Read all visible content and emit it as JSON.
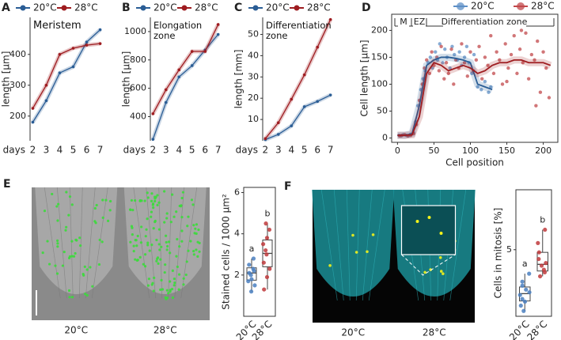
{
  "chart_data": [
    {
      "type": "line",
      "panel": "A",
      "title": "Meristem",
      "x_label": "days",
      "y_label": "length [µm]",
      "x": [
        2,
        3,
        4,
        5,
        6,
        7
      ],
      "xlim": [
        1.8,
        7.2
      ],
      "xticks": [
        2,
        3,
        4,
        5,
        6,
        7
      ],
      "ylim": [
        120,
        520
      ],
      "yticks": [
        200,
        300,
        400
      ],
      "series": [
        {
          "name": "20°C",
          "color": "#2a5d95",
          "values": [
            180,
            250,
            340,
            360,
            440,
            480
          ]
        },
        {
          "name": "28°C",
          "color": "#9e1c20",
          "values": [
            225,
            300,
            400,
            420,
            430,
            435
          ]
        }
      ]
    },
    {
      "type": "line",
      "panel": "B",
      "title": "Elongation zone",
      "x_label": "days",
      "y_label": "length [µm]",
      "x": [
        2,
        3,
        4,
        5,
        6,
        7
      ],
      "xlim": [
        1.8,
        7.2
      ],
      "xticks": [
        2,
        3,
        4,
        5,
        6,
        7
      ],
      "ylim": [
        230,
        1100
      ],
      "yticks": [
        400,
        600,
        800,
        1000
      ],
      "series": [
        {
          "name": "20°C",
          "color": "#2a5d95",
          "values": [
            240,
            500,
            680,
            760,
            870,
            980
          ]
        },
        {
          "name": "28°C",
          "color": "#9e1c20",
          "values": [
            420,
            590,
            730,
            860,
            860,
            1050
          ]
        }
      ]
    },
    {
      "type": "line",
      "panel": "C",
      "title": "Differentiation zone",
      "x_label": "days",
      "y_label": "length [mm]",
      "x": [
        2,
        3,
        4,
        5,
        6,
        7
      ],
      "xlim": [
        1.8,
        7.2
      ],
      "xticks": [
        2,
        3,
        4,
        5,
        6,
        7
      ],
      "ylim": [
        0,
        58
      ],
      "yticks": [
        10,
        20,
        30,
        40,
        50
      ],
      "series": [
        {
          "name": "20°C",
          "color": "#2a5d95",
          "values": [
            0.5,
            3,
            7,
            16,
            18.5,
            21.5
          ]
        },
        {
          "name": "28°C",
          "color": "#9e1c20",
          "values": [
            1,
            8.5,
            19.5,
            31,
            44,
            57
          ]
        }
      ]
    },
    {
      "type": "scatter",
      "panel": "D",
      "x_label": "Cell position",
      "y_label": "Cell length [µm]",
      "zones": [
        "M",
        "EZ",
        "Differentiation zone"
      ],
      "xlim": [
        -8,
        220
      ],
      "xticks": [
        0,
        50,
        100,
        150,
        200
      ],
      "ylim": [
        -8,
        230
      ],
      "yticks": [
        0,
        50,
        100,
        150,
        200
      ],
      "series": [
        {
          "name": "20°C",
          "color": "#5d8fc6",
          "x": [
            2,
            5,
            8,
            12,
            15,
            18,
            22,
            25,
            28,
            32,
            35,
            38,
            42,
            45,
            48,
            52,
            55,
            58,
            62,
            65,
            68,
            72,
            75,
            78,
            82,
            85,
            88,
            92,
            95,
            98,
            102,
            105,
            110,
            115,
            120,
            125,
            128
          ],
          "values": [
            5,
            4,
            6,
            5,
            4,
            7,
            10,
            30,
            60,
            90,
            110,
            125,
            140,
            150,
            130,
            160,
            145,
            175,
            140,
            165,
            150,
            130,
            170,
            155,
            145,
            160,
            135,
            150,
            170,
            140,
            120,
            155,
            95,
            90,
            105,
            85,
            95
          ]
        },
        {
          "name": "28°C",
          "color": "#c2484b",
          "x": [
            3,
            6,
            10,
            14,
            18,
            22,
            26,
            30,
            34,
            37,
            40,
            44,
            47,
            50,
            54,
            57,
            60,
            64,
            67,
            70,
            74,
            77,
            80,
            84,
            88,
            92,
            96,
            100,
            104,
            108,
            112,
            116,
            120,
            124,
            128,
            132,
            136,
            140,
            144,
            148,
            150,
            152,
            156,
            160,
            164,
            168,
            170,
            172,
            176,
            180,
            184,
            188,
            190,
            192,
            196,
            200,
            204,
            208
          ],
          "values": [
            4,
            5,
            6,
            4,
            5,
            8,
            25,
            70,
            100,
            130,
            145,
            120,
            160,
            135,
            150,
            125,
            170,
            110,
            140,
            120,
            165,
            100,
            145,
            130,
            175,
            140,
            115,
            160,
            125,
            145,
            170,
            110,
            150,
            135,
            190,
            120,
            160,
            145,
            100,
            175,
            105,
            130,
            155,
            190,
            120,
            165,
            200,
            140,
            195,
            110,
            155,
            145,
            60,
            180,
            85,
            160,
            130,
            75
          ]
        }
      ],
      "fits": [
        {
          "color": "#2a5d95",
          "x": [
            0,
            10,
            20,
            30,
            40,
            50,
            60,
            70,
            80,
            90,
            100,
            110,
            120,
            130
          ],
          "values": [
            5,
            5,
            8,
            60,
            135,
            145,
            150,
            150,
            148,
            145,
            140,
            100,
            95,
            90
          ]
        },
        {
          "color": "#9e1c20",
          "x": [
            0,
            10,
            20,
            30,
            40,
            50,
            60,
            70,
            80,
            90,
            100,
            110,
            120,
            130,
            140,
            150,
            160,
            170,
            180,
            190,
            200,
            210
          ],
          "values": [
            5,
            5,
            6,
            40,
            120,
            140,
            135,
            125,
            130,
            135,
            130,
            120,
            125,
            135,
            140,
            140,
            145,
            145,
            140,
            140,
            140,
            135
          ]
        }
      ]
    },
    {
      "type": "box",
      "panel": "E",
      "image_labels": [
        "20°C",
        "28°C"
      ],
      "y_label": "Stained cells / 1000 µm²",
      "categories": [
        "20°C",
        "28°C"
      ],
      "group_labels": [
        "a",
        "b"
      ],
      "colors": [
        "#4a7fbf",
        "#c0393c"
      ],
      "ylim": [
        0,
        6.25
      ],
      "yticks": [
        2,
        4,
        6
      ],
      "boxes": [
        {
          "min": 1.2,
          "q1": 1.75,
          "median": 2.1,
          "q3": 2.35,
          "max": 2.8
        },
        {
          "min": 1.3,
          "q1": 2.4,
          "median": 3.05,
          "q3": 3.7,
          "max": 4.5
        }
      ],
      "points": [
        [
          1.2,
          1.5,
          1.7,
          1.8,
          2.0,
          2.1,
          2.2,
          2.3,
          2.5,
          2.8
        ],
        [
          1.3,
          1.9,
          2.3,
          2.6,
          3.0,
          3.2,
          3.5,
          3.8,
          4.2,
          4.5
        ]
      ]
    },
    {
      "type": "box",
      "panel": "F",
      "image_labels": [
        "20°C",
        "28°C"
      ],
      "y_label": "Cells in mitosis [%]",
      "categories": [
        "20°C",
        "28°C"
      ],
      "group_labels": [
        "a",
        "b"
      ],
      "colors": [
        "#4a7fbf",
        "#c0393c"
      ],
      "ylim": [
        0,
        9.5
      ],
      "yticks": [
        5
      ],
      "boxes": [
        {
          "min": 0.4,
          "q1": 1.15,
          "median": 1.7,
          "q3": 2.2,
          "max": 3.2
        },
        {
          "min": 3.0,
          "q1": 3.4,
          "median": 3.9,
          "q3": 4.8,
          "max": 6.5
        }
      ],
      "points": [
        [
          0.4,
          0.8,
          1.1,
          1.3,
          1.6,
          1.8,
          2.0,
          2.3,
          2.6,
          3.2
        ],
        [
          3.0,
          3.3,
          3.5,
          3.8,
          4.0,
          4.3,
          4.8,
          5.5,
          6.5
        ]
      ]
    }
  ]
}
